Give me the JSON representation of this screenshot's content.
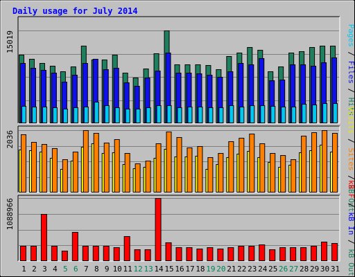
{
  "chart_data": {
    "type": "bar",
    "title": "Daily usage for July 2014",
    "categories": [
      "1",
      "2",
      "3",
      "4",
      "5",
      "6",
      "7",
      "8",
      "9",
      "10",
      "11",
      "12",
      "13",
      "14",
      "15",
      "16",
      "17",
      "18",
      "19",
      "20",
      "21",
      "22",
      "23",
      "24",
      "25",
      "26",
      "27",
      "28",
      "29",
      "30",
      "31"
    ],
    "weekend_days": [
      "5",
      "6",
      "12",
      "13",
      "19",
      "20",
      "26",
      "27"
    ],
    "panels": [
      {
        "id": "hits-files-pages",
        "max_label": "15019",
        "ylim": [
          0,
          15019
        ],
        "series": [
          {
            "name": "Hits",
            "color": "#1f8060",
            "values": [
              11100,
              10400,
              9800,
              9300,
              8400,
              9200,
              12500,
              10300,
              10300,
              11100,
              8200,
              7400,
              8900,
              11300,
              15019,
              9500,
              9500,
              9500,
              9400,
              8700,
              10900,
              11400,
              12300,
              11900,
              8400,
              9200,
              11400,
              11700,
              12300,
              12600,
              12600
            ]
          },
          {
            "name": "Files",
            "color": "#1010e8",
            "values": [
              9800,
              9000,
              8600,
              8200,
              6700,
              7800,
              9700,
              10400,
              8700,
              9000,
              6600,
              6100,
              7400,
              8500,
              11400,
              8200,
              8200,
              8100,
              7800,
              7500,
              8400,
              9700,
              9500,
              10500,
              6900,
              7100,
              9500,
              9500,
              9300,
              9900,
              10700
            ]
          },
          {
            "name": "Pages",
            "color": "#00c8f0",
            "values": [
              2800,
              2700,
              2700,
              2600,
              2300,
              2600,
              2700,
              3500,
              2900,
              2600,
              2300,
              2400,
              2600,
              2900,
              2900,
              2600,
              2700,
              2700,
              2600,
              2600,
              2900,
              2700,
              2900,
              2900,
              2800,
              2700,
              2700,
              3100,
              3000,
              3300,
              3300
            ]
          }
        ]
      },
      {
        "id": "sites-visits",
        "max_label": "2036",
        "ylim": [
          0,
          2036
        ],
        "series": [
          {
            "name": "Visits",
            "color": "#ffff00",
            "values": [
              1400,
              1380,
              1340,
              1120,
              780,
              1050,
              1500,
              1600,
              1280,
              1320,
              920,
              800,
              830,
              1120,
              1420,
              1180,
              1180,
              1200,
              780,
              920,
              1150,
              1260,
              1350,
              1150,
              1000,
              830,
              900,
              1320,
              1370,
              1550,
              1340
            ]
          },
          {
            "name": "Sites",
            "color": "#ff8000",
            "values": [
              1900,
              1650,
              1580,
              1450,
              1080,
              1340,
              2036,
              1950,
              1620,
              1750,
              1280,
              960,
              1050,
              1600,
              1990,
              1800,
              1460,
              1510,
              1160,
              1280,
              1680,
              1780,
              1930,
              1600,
              1280,
              1230,
              1090,
              1850,
              1960,
              2036,
              1950
            ]
          }
        ]
      },
      {
        "id": "kbytes",
        "max_label": "1088966",
        "ylim": [
          0,
          1088966
        ],
        "series": [
          {
            "name": "kB F",
            "color": "#ff0000",
            "values": [
              265000,
              265000,
              810000,
              265000,
              185000,
              500000,
              265000,
              265000,
              265000,
              240000,
              430000,
              200000,
              200000,
              1088966,
              320000,
              240000,
              240000,
              220000,
              240000,
              220000,
              240000,
              265000,
              265000,
              290000,
              200000,
              240000,
              240000,
              240000,
              265000,
              330000,
              310000
            ]
          },
          {
            "name": "kB In",
            "color": "#0000ff",
            "values": []
          },
          {
            "name": "kB Out",
            "color": "#1f8060",
            "values": []
          }
        ]
      }
    ],
    "legends": {
      "hits-files-pages": [
        {
          "text": "Pages",
          "color": "#00c8f0"
        },
        {
          "text": " / ",
          "color": "#000000"
        },
        {
          "text": "Files",
          "color": "#1010e8"
        },
        {
          "text": " / ",
          "color": "#000000"
        },
        {
          "text": "Hits",
          "color": "#1f8060"
        }
      ],
      "sites-visits": [
        {
          "text": "Visits",
          "color": "#e8e800"
        },
        {
          "text": " / ",
          "color": "#000000"
        },
        {
          "text": "Sites",
          "color": "#ff8000"
        },
        {
          "text": " / ",
          "color": "#000000"
        },
        {
          "text": "kB Out",
          "color": "#1f8060"
        }
      ],
      "kbytes": [
        {
          "text": "kB F",
          "color": "#ff0000"
        },
        {
          "text": " / ",
          "color": "#000000"
        },
        {
          "text": "kB In",
          "color": "#0000ff"
        },
        {
          "text": " / ",
          "color": "#000000"
        },
        {
          "text": "kB Out",
          "color": "#1f8060"
        }
      ]
    }
  }
}
